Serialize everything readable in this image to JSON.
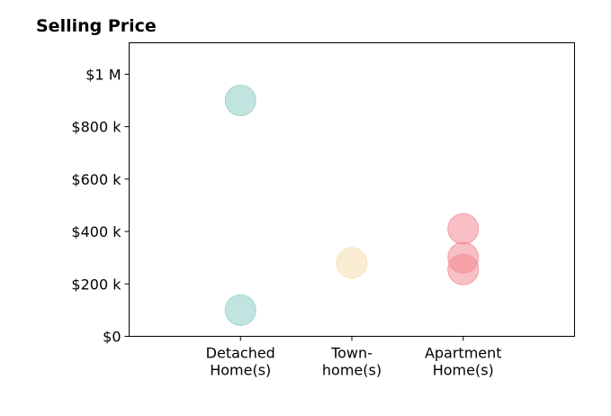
{
  "chart_data": {
    "type": "scatter",
    "title": "Selling Price",
    "xlabel": "",
    "ylabel": "",
    "categories": [
      [
        "Detached",
        "Home(s)"
      ],
      [
        "Town-",
        "home(s)"
      ],
      [
        "Apartment",
        "Home(s)"
      ]
    ],
    "xlim": [
      0,
      4
    ],
    "ylim": [
      0,
      1120000
    ],
    "yticks": [
      {
        "value": 0,
        "label": "$0"
      },
      {
        "value": 200000,
        "label": "$200 k"
      },
      {
        "value": 400000,
        "label": "$400 k"
      },
      {
        "value": 600000,
        "label": "$600 k"
      },
      {
        "value": 800000,
        "label": "$800 k"
      },
      {
        "value": 1000000,
        "label": "$1 M"
      }
    ],
    "grid": false,
    "points": [
      {
        "category": 0,
        "value": 900000,
        "color": "#8ecdc6"
      },
      {
        "category": 0,
        "value": 100000,
        "color": "#8ecdc6"
      },
      {
        "category": 1,
        "value": 280000,
        "color": "#f5deb0"
      },
      {
        "category": 2,
        "value": 410000,
        "color": "#f28a94"
      },
      {
        "category": 2,
        "value": 300000,
        "color": "#f28a94"
      },
      {
        "category": 2,
        "value": 255000,
        "color": "#f28a94"
      }
    ]
  }
}
